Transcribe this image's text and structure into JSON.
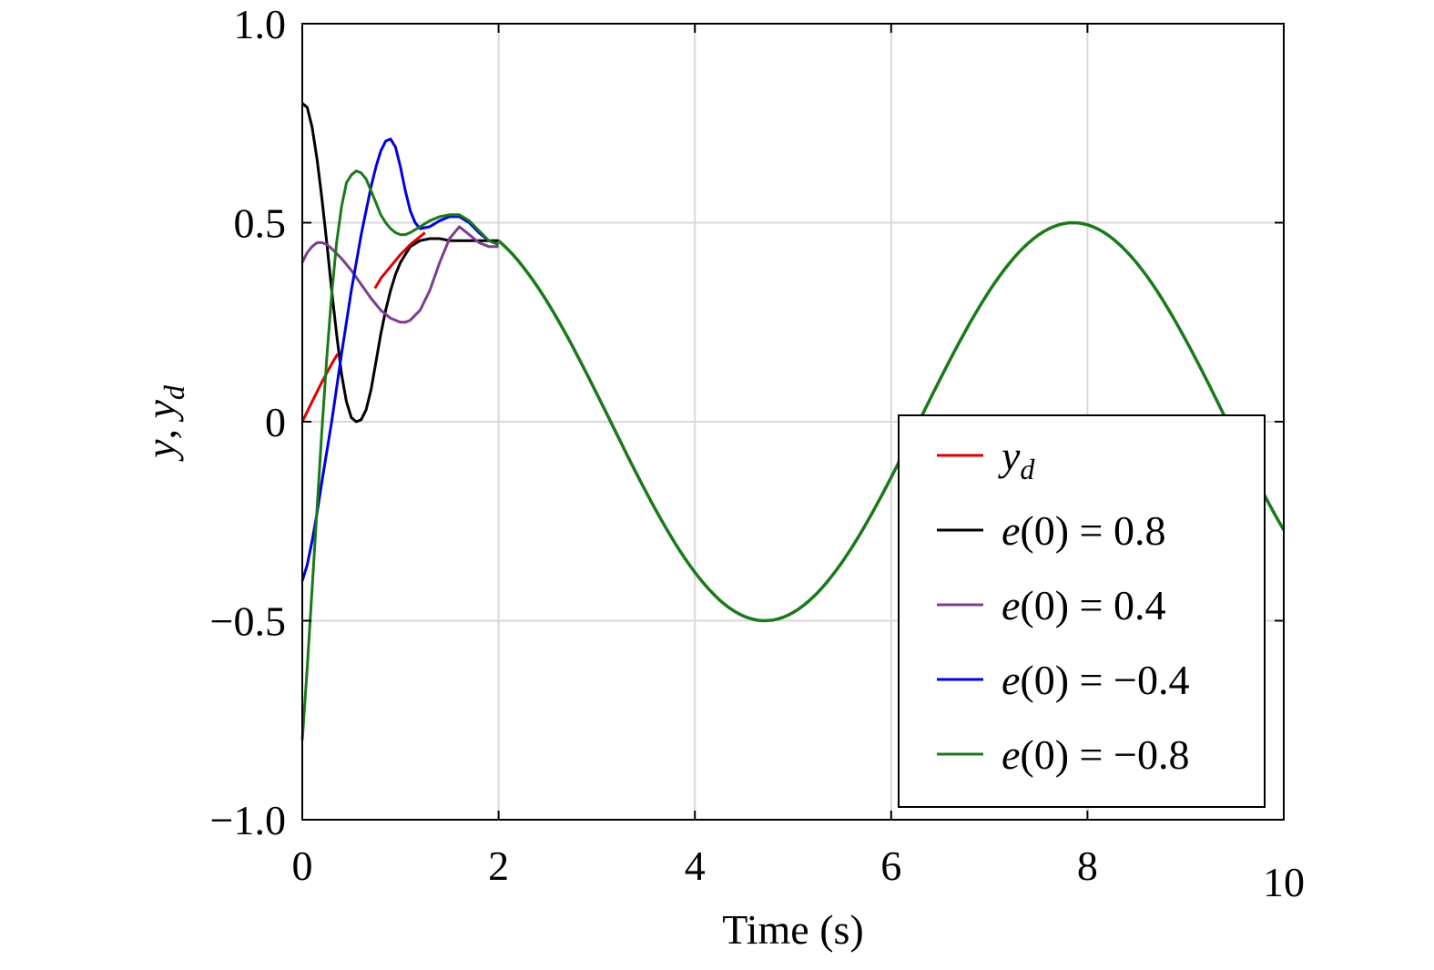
{
  "chart_data": {
    "type": "line",
    "xlabel": "Time (s)",
    "ylabel": {
      "main": "y",
      "sep": ", ",
      "sub_base": "y",
      "sub": "d"
    },
    "xlim": [
      0,
      10
    ],
    "ylim": [
      -1.0,
      1.0
    ],
    "x_ticks": [
      0,
      2,
      4,
      6,
      8,
      10
    ],
    "x_tick_labels": [
      "0",
      "2",
      "4",
      "6",
      "8",
      "10"
    ],
    "y_ticks": [
      -1.0,
      -0.5,
      0,
      0.5,
      1.0
    ],
    "y_tick_labels": [
      "−1.0",
      "−0.5",
      "0",
      "0.5",
      "1.0"
    ],
    "grid": true,
    "legend_position": "bottom-right",
    "reference": {
      "description_formula": "0.5*sin(t)",
      "amplitude": 0.5
    },
    "series": [
      {
        "name": "y_d",
        "label_base": "y",
        "label_sub": "d",
        "color": "#e00000",
        "segments": [
          {
            "x": [
              0.0,
              0.1,
              0.2,
              0.3,
              0.36
            ],
            "y": [
              0.0,
              0.05,
              0.1,
              0.145,
              0.17
            ]
          },
          {
            "x": [
              0.74,
              0.8,
              0.9,
              1.0,
              1.1,
              1.2,
              1.25
            ],
            "y": [
              0.335,
              0.36,
              0.39,
              0.42,
              0.445,
              0.465,
              0.475
            ]
          }
        ]
      },
      {
        "name": "e(0) = 0.8",
        "label_base": "e",
        "label_rest": "(0) = 0.8",
        "color": "#000000",
        "x": [
          0.0,
          0.05,
          0.1,
          0.15,
          0.2,
          0.25,
          0.3,
          0.35,
          0.4,
          0.45,
          0.5,
          0.55,
          0.6,
          0.65,
          0.7,
          0.75,
          0.8,
          0.85,
          0.9,
          0.95,
          1.0,
          1.1,
          1.2,
          1.3,
          1.4,
          1.5,
          1.6,
          1.7,
          1.8,
          1.9,
          2.0
        ],
        "y": [
          0.8,
          0.79,
          0.74,
          0.66,
          0.56,
          0.45,
          0.33,
          0.22,
          0.12,
          0.05,
          0.01,
          0.0,
          0.005,
          0.03,
          0.08,
          0.15,
          0.22,
          0.28,
          0.33,
          0.37,
          0.4,
          0.44,
          0.455,
          0.46,
          0.46,
          0.455,
          0.455,
          0.455,
          0.455,
          0.455,
          0.455
        ]
      },
      {
        "name": "e(0) = 0.4",
        "label_base": "e",
        "label_rest": "(0) = 0.4",
        "color": "#7b3f8f",
        "x": [
          0.0,
          0.05,
          0.1,
          0.15,
          0.2,
          0.25,
          0.3,
          0.4,
          0.5,
          0.6,
          0.7,
          0.8,
          0.9,
          1.0,
          1.05,
          1.1,
          1.2,
          1.3,
          1.4,
          1.5,
          1.6,
          1.7,
          1.8,
          1.9,
          2.0
        ],
        "y": [
          0.4,
          0.425,
          0.44,
          0.45,
          0.45,
          0.445,
          0.435,
          0.41,
          0.38,
          0.345,
          0.31,
          0.28,
          0.26,
          0.25,
          0.25,
          0.255,
          0.28,
          0.33,
          0.4,
          0.46,
          0.49,
          0.47,
          0.45,
          0.44,
          0.44
        ]
      },
      {
        "name": "e(0) = −0.4",
        "label_base": "e",
        "label_rest": "(0) = −0.4",
        "color": "#0000e0",
        "x": [
          0.0,
          0.05,
          0.1,
          0.15,
          0.2,
          0.3,
          0.4,
          0.5,
          0.6,
          0.7,
          0.75,
          0.8,
          0.85,
          0.9,
          0.95,
          1.0,
          1.05,
          1.1,
          1.15,
          1.2,
          1.3,
          1.4,
          1.5,
          1.6,
          1.7,
          1.8,
          1.9,
          2.0
        ],
        "y": [
          -0.4,
          -0.36,
          -0.3,
          -0.23,
          -0.15,
          0.0,
          0.17,
          0.33,
          0.47,
          0.59,
          0.64,
          0.68,
          0.705,
          0.71,
          0.69,
          0.64,
          0.58,
          0.53,
          0.5,
          0.485,
          0.49,
          0.505,
          0.515,
          0.515,
          0.5,
          0.475,
          0.455,
          0.445
        ]
      },
      {
        "name": "e(0) = −0.8",
        "label_base": "e",
        "label_rest": "(0) = −0.8",
        "color": "#1a7a1a",
        "x": [
          0.0,
          0.05,
          0.1,
          0.15,
          0.2,
          0.25,
          0.3,
          0.35,
          0.4,
          0.45,
          0.5,
          0.55,
          0.6,
          0.65,
          0.7,
          0.75,
          0.8,
          0.85,
          0.9,
          0.95,
          1.0,
          1.05,
          1.1,
          1.2,
          1.3,
          1.4,
          1.5,
          1.6,
          1.7,
          1.8,
          1.9,
          2.0
        ],
        "y": [
          -0.8,
          -0.62,
          -0.42,
          -0.22,
          -0.02,
          0.16,
          0.32,
          0.45,
          0.54,
          0.6,
          0.62,
          0.63,
          0.625,
          0.61,
          0.58,
          0.55,
          0.52,
          0.5,
          0.485,
          0.475,
          0.47,
          0.47,
          0.475,
          0.49,
          0.505,
          0.515,
          0.52,
          0.52,
          0.505,
          0.48,
          0.455,
          0.445
        ]
      }
    ]
  }
}
